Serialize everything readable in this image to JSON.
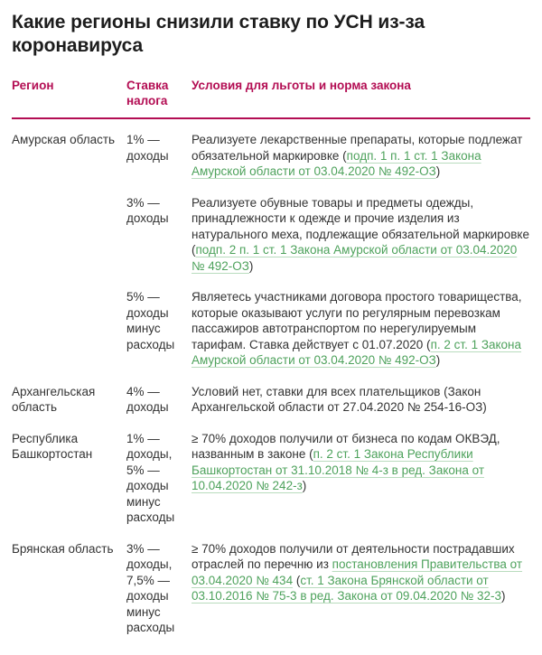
{
  "page": {
    "title": "Какие регионы снизили ставку по УСН из-за коронавируса"
  },
  "colors": {
    "accent_crimson": "#b30d53",
    "link_green": "#4ea25c",
    "text_dark": "#333333"
  },
  "table": {
    "headers": {
      "region": "Регион",
      "rate": "Ставка налога",
      "conditions": "Условия для льготы и норма закона"
    },
    "rows": [
      {
        "region": "Амурская область",
        "rate": "1% —\nдоходы",
        "segments": [
          {
            "text": "Реализуете лекарственные препараты, которые подлежат обязательной маркировке (",
            "link": false
          },
          {
            "text": "подп. 1 п. 1 ст. 1 Закона Амурской области от 03.04.2020 № 492-ОЗ",
            "link": true
          },
          {
            "text": ")",
            "link": false
          }
        ]
      },
      {
        "region": "",
        "rate": "3% —\nдоходы",
        "segments": [
          {
            "text": "Реализуете обувные товары и предметы одежды, принадлежности к одежде и прочие изделия из натурального меха, подлежащие обязательной маркировке (",
            "link": false
          },
          {
            "text": "подп. 2 п. 1 ст. 1 Закона Амурской области от 03.04.2020 № 492-ОЗ",
            "link": true
          },
          {
            "text": ")",
            "link": false
          }
        ]
      },
      {
        "region": "",
        "rate": "5% —\nдоходы\nминус\nрасходы",
        "segments": [
          {
            "text": "Являетесь участниками договора простого товарищества, которые оказывают услуги по регулярным перевозкам пассажиров автотранспортом по нерегулируемым тарифам. Ставка действует с 01.07.2020 (",
            "link": false
          },
          {
            "text": "п. 2 ст. 1 Закона Амурской области от 03.04.2020 № 492-ОЗ",
            "link": true
          },
          {
            "text": ")",
            "link": false
          }
        ]
      },
      {
        "region": "Архангельская область",
        "rate": "4% —\nдоходы",
        "segments": [
          {
            "text": "Условий нет, ставки для всех плательщиков (Закон Архангельской области от 27.04.2020 № 254-16-ОЗ)",
            "link": false
          }
        ]
      },
      {
        "region": "Республика Башкортостан",
        "rate": "1% —\nдоходы,\n5% —\nдоходы\nминус\nрасходы",
        "segments": [
          {
            "text": "≥ 70% доходов получили от бизнеса по кодам ОКВЭД, названным в законе (",
            "link": false
          },
          {
            "text": "п. 2 ст. 1 Закона Республики Башкортостан от 31.10.2018 № 4-з в ред. Закона от 10.04.2020 № 242-з",
            "link": true
          },
          {
            "text": ")",
            "link": false
          }
        ]
      },
      {
        "region": "Брянская область",
        "rate": "3% —\nдоходы,\n7,5% —\nдоходы\nминус\nрасходы",
        "segments": [
          {
            "text": "≥ 70% доходов получили от деятельности пострадавших отраслей по перечню из ",
            "link": false
          },
          {
            "text": "постановления Правительства от 03.04.2020 № 434",
            "link": true
          },
          {
            "text": " (",
            "link": false
          },
          {
            "text": "ст. 1 Закона Брянской области от 03.10.2016 № 75-3 в ред. Закона от 09.04.2020 № 32-3",
            "link": true
          },
          {
            "text": ")",
            "link": false
          }
        ]
      }
    ]
  }
}
